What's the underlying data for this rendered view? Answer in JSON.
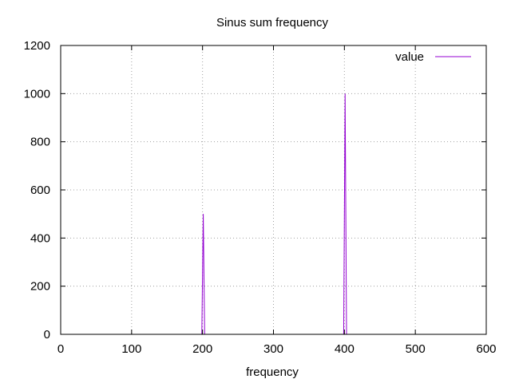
{
  "chart_data": {
    "type": "line",
    "title": "Sinus sum frequency",
    "xlabel": "frequency",
    "ylabel": "",
    "xlim": [
      0,
      600
    ],
    "ylim": [
      0,
      1200
    ],
    "x_ticks": [
      0,
      100,
      200,
      300,
      400,
      500,
      600
    ],
    "y_ticks": [
      0,
      200,
      400,
      600,
      800,
      1000,
      1200
    ],
    "grid": true,
    "legend_position": "top-right",
    "series": [
      {
        "name": "value",
        "color": "#9400d3",
        "points": [
          [
            0,
            0
          ],
          [
            199,
            0
          ],
          [
            200,
            250
          ],
          [
            201,
            500
          ],
          [
            202,
            250
          ],
          [
            203,
            0
          ],
          [
            398,
            0
          ],
          [
            399,
            0
          ],
          [
            400,
            500
          ],
          [
            401,
            1000
          ],
          [
            402,
            500
          ],
          [
            403,
            0
          ],
          [
            600,
            0
          ]
        ]
      }
    ]
  }
}
